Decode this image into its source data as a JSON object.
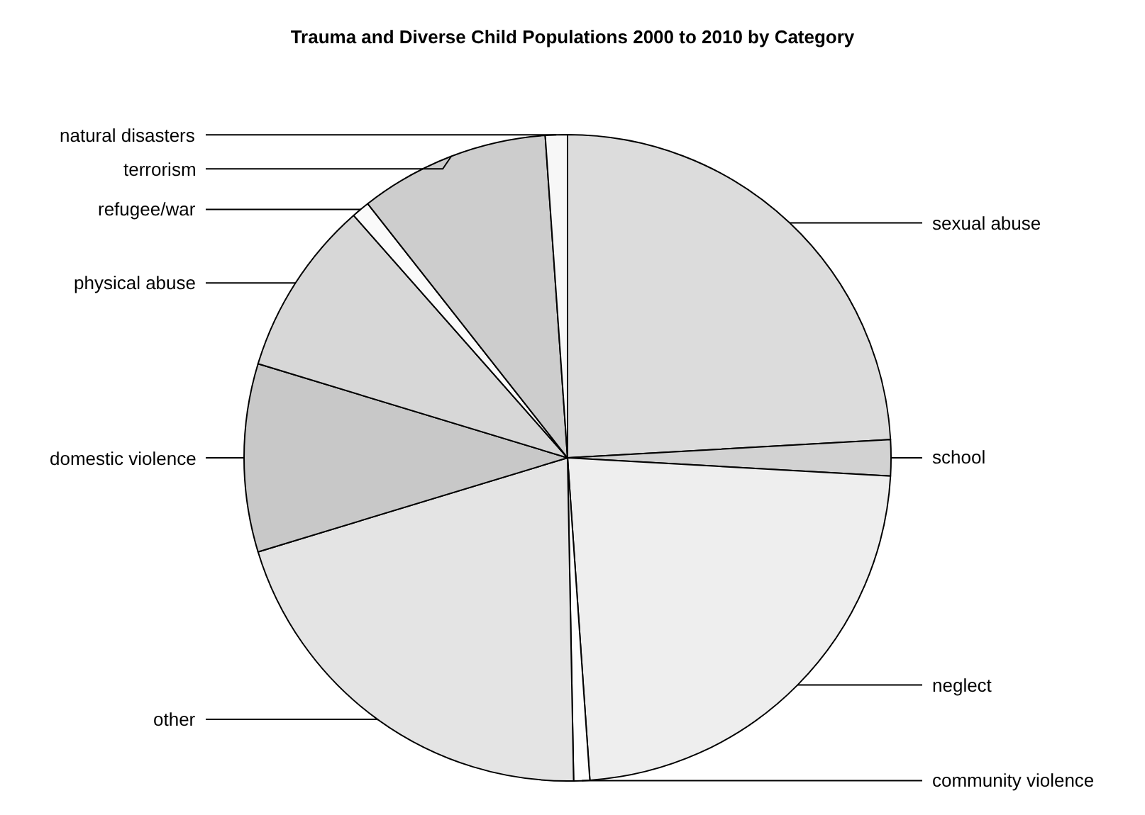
{
  "chart_data": {
    "type": "pie",
    "title": "Trauma and Diverse Child Populations 2000 to 2010 by Category",
    "categories": [
      "sexual abuse",
      "school",
      "neglect",
      "community violence",
      "other",
      "domestic violence",
      "physical abuse",
      "refugee/war",
      "terrorism",
      "natural disasters"
    ],
    "values": [
      24.1,
      1.8,
      23,
      0.8,
      20.6,
      9.4,
      8.8,
      0.9,
      9.5,
      1.1
    ],
    "colors": [
      "#dcdcdc",
      "#d2d2d2",
      "#eeeeee",
      "#fdfdfd",
      "#e4e4e4",
      "#c8c8c8",
      "#d7d7d7",
      "#fafafa",
      "#cdcdcd",
      "#f7f7f7"
    ],
    "legend": false
  }
}
